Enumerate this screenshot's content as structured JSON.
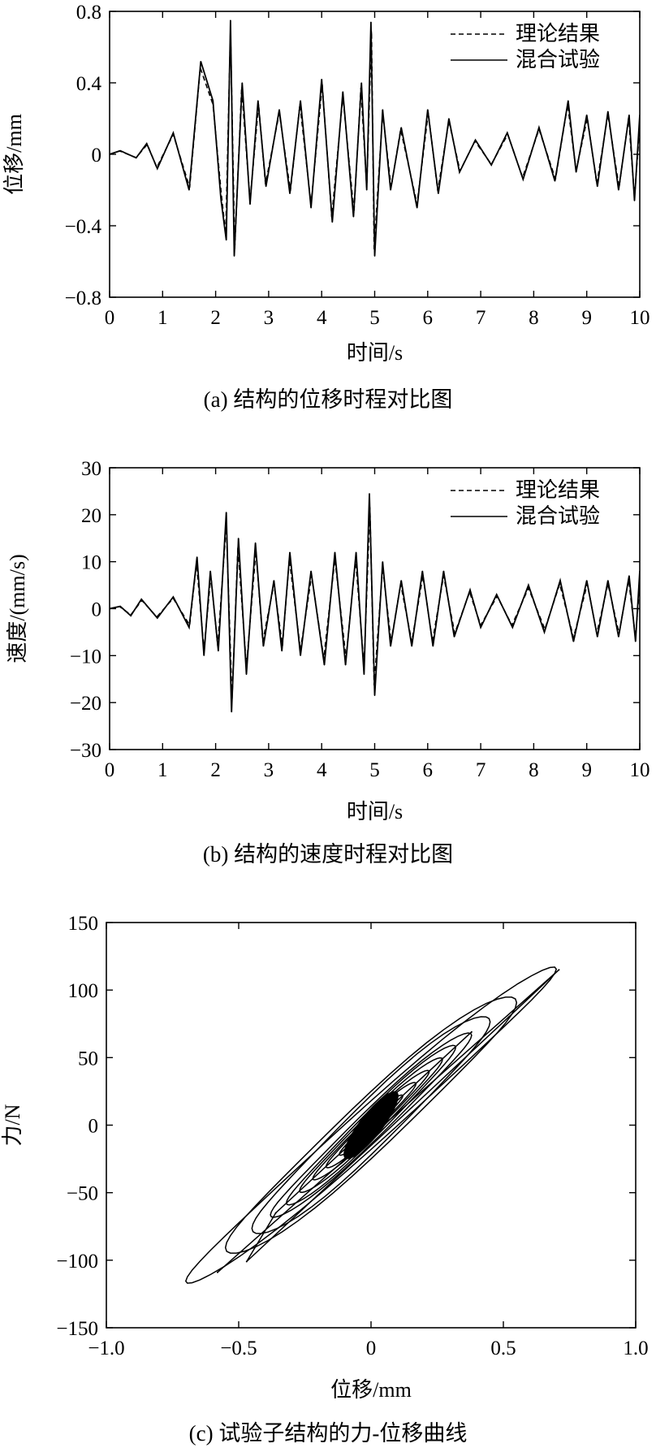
{
  "chart_data": [
    {
      "id": "a",
      "type": "line",
      "caption": "(a) 结构的位移时程对比图",
      "xlabel": "时间/s",
      "ylabel": "位移/mm",
      "xlim": [
        0,
        10
      ],
      "ylim": [
        -0.8,
        0.8
      ],
      "xticks": [
        "0",
        "1",
        "2",
        "3",
        "4",
        "5",
        "6",
        "7",
        "8",
        "9",
        "10"
      ],
      "yticks": [
        "0.8",
        "0.4",
        "0",
        "−0.4",
        "−0.8"
      ],
      "legend": {
        "position": "top-right",
        "entries": [
          "理论结果",
          "混合试验"
        ]
      },
      "series": [
        {
          "name": "理论结果",
          "style": "dashed",
          "scale": 0.93
        },
        {
          "name": "混合试验",
          "style": "solid",
          "scale": 1.0
        }
      ],
      "peaks": [
        {
          "x": 0.2,
          "y": 0.02
        },
        {
          "x": 0.5,
          "y": -0.02
        },
        {
          "x": 0.7,
          "y": 0.06
        },
        {
          "x": 0.9,
          "y": -0.08
        },
        {
          "x": 1.2,
          "y": 0.12
        },
        {
          "x": 1.5,
          "y": -0.2
        },
        {
          "x": 1.72,
          "y": 0.52
        },
        {
          "x": 1.95,
          "y": 0.3
        },
        {
          "x": 2.1,
          "y": -0.25
        },
        {
          "x": 2.2,
          "y": -0.48
        },
        {
          "x": 2.28,
          "y": 0.75
        },
        {
          "x": 2.35,
          "y": -0.57
        },
        {
          "x": 2.5,
          "y": 0.4
        },
        {
          "x": 2.65,
          "y": -0.28
        },
        {
          "x": 2.8,
          "y": 0.3
        },
        {
          "x": 2.95,
          "y": -0.18
        },
        {
          "x": 3.2,
          "y": 0.25
        },
        {
          "x": 3.4,
          "y": -0.22
        },
        {
          "x": 3.6,
          "y": 0.3
        },
        {
          "x": 3.8,
          "y": -0.3
        },
        {
          "x": 4.0,
          "y": 0.42
        },
        {
          "x": 4.2,
          "y": -0.38
        },
        {
          "x": 4.4,
          "y": 0.35
        },
        {
          "x": 4.6,
          "y": -0.35
        },
        {
          "x": 4.75,
          "y": 0.4
        },
        {
          "x": 4.85,
          "y": -0.2
        },
        {
          "x": 4.93,
          "y": 0.74
        },
        {
          "x": 5.0,
          "y": -0.57
        },
        {
          "x": 5.15,
          "y": 0.25
        },
        {
          "x": 5.3,
          "y": -0.2
        },
        {
          "x": 5.5,
          "y": 0.15
        },
        {
          "x": 5.8,
          "y": -0.3
        },
        {
          "x": 6.0,
          "y": 0.25
        },
        {
          "x": 6.2,
          "y": -0.22
        },
        {
          "x": 6.4,
          "y": 0.2
        },
        {
          "x": 6.6,
          "y": -0.1
        },
        {
          "x": 6.9,
          "y": 0.08
        },
        {
          "x": 7.2,
          "y": -0.06
        },
        {
          "x": 7.5,
          "y": 0.12
        },
        {
          "x": 7.8,
          "y": -0.14
        },
        {
          "x": 8.1,
          "y": 0.15
        },
        {
          "x": 8.4,
          "y": -0.15
        },
        {
          "x": 8.65,
          "y": 0.3
        },
        {
          "x": 8.8,
          "y": -0.1
        },
        {
          "x": 9.0,
          "y": 0.22
        },
        {
          "x": 9.2,
          "y": -0.18
        },
        {
          "x": 9.4,
          "y": 0.24
        },
        {
          "x": 9.6,
          "y": -0.2
        },
        {
          "x": 9.8,
          "y": 0.22
        },
        {
          "x": 9.9,
          "y": -0.26
        },
        {
          "x": 10.0,
          "y": 0.22
        }
      ]
    },
    {
      "id": "b",
      "type": "line",
      "caption": "(b) 结构的速度时程对比图",
      "xlabel": "时间/s",
      "ylabel": "速度/(mm/s)",
      "xlim": [
        0,
        10
      ],
      "ylim": [
        -30,
        30
      ],
      "xticks": [
        "0",
        "1",
        "2",
        "3",
        "4",
        "5",
        "6",
        "7",
        "8",
        "9",
        "10"
      ],
      "yticks": [
        "30",
        "20",
        "10",
        "0",
        "−10",
        "−20",
        "−30"
      ],
      "legend": {
        "position": "top-right",
        "entries": [
          "理论结果",
          "混合试验"
        ]
      },
      "series": [
        {
          "name": "理论结果",
          "style": "dashed",
          "scale": 0.88
        },
        {
          "name": "混合试验",
          "style": "solid",
          "scale": 1.0
        }
      ],
      "peaks": [
        {
          "x": 0.2,
          "y": 0.5
        },
        {
          "x": 0.4,
          "y": -1.5
        },
        {
          "x": 0.6,
          "y": 2
        },
        {
          "x": 0.9,
          "y": -2
        },
        {
          "x": 1.2,
          "y": 2.5
        },
        {
          "x": 1.5,
          "y": -4
        },
        {
          "x": 1.65,
          "y": 11
        },
        {
          "x": 1.78,
          "y": -10
        },
        {
          "x": 1.9,
          "y": 8
        },
        {
          "x": 2.05,
          "y": -9
        },
        {
          "x": 2.2,
          "y": 20.5
        },
        {
          "x": 2.3,
          "y": -22
        },
        {
          "x": 2.43,
          "y": 15
        },
        {
          "x": 2.58,
          "y": -14
        },
        {
          "x": 2.75,
          "y": 14
        },
        {
          "x": 2.9,
          "y": -8
        },
        {
          "x": 3.1,
          "y": 6
        },
        {
          "x": 3.25,
          "y": -9
        },
        {
          "x": 3.4,
          "y": 12
        },
        {
          "x": 3.6,
          "y": -10
        },
        {
          "x": 3.8,
          "y": 8
        },
        {
          "x": 4.05,
          "y": -12
        },
        {
          "x": 4.25,
          "y": 12
        },
        {
          "x": 4.45,
          "y": -12
        },
        {
          "x": 4.65,
          "y": 12
        },
        {
          "x": 4.8,
          "y": -14
        },
        {
          "x": 4.9,
          "y": 24.5
        },
        {
          "x": 5.0,
          "y": -18.5
        },
        {
          "x": 5.15,
          "y": 10
        },
        {
          "x": 5.3,
          "y": -8
        },
        {
          "x": 5.5,
          "y": 6
        },
        {
          "x": 5.7,
          "y": -8
        },
        {
          "x": 5.9,
          "y": 8
        },
        {
          "x": 6.1,
          "y": -8
        },
        {
          "x": 6.3,
          "y": 8
        },
        {
          "x": 6.5,
          "y": -6
        },
        {
          "x": 6.8,
          "y": 4
        },
        {
          "x": 7.0,
          "y": -4
        },
        {
          "x": 7.3,
          "y": 3
        },
        {
          "x": 7.6,
          "y": -4
        },
        {
          "x": 7.9,
          "y": 5
        },
        {
          "x": 8.2,
          "y": -5
        },
        {
          "x": 8.5,
          "y": 6
        },
        {
          "x": 8.75,
          "y": -7
        },
        {
          "x": 9.0,
          "y": 6
        },
        {
          "x": 9.2,
          "y": -6
        },
        {
          "x": 9.4,
          "y": 6
        },
        {
          "x": 9.6,
          "y": -6
        },
        {
          "x": 9.8,
          "y": 7
        },
        {
          "x": 9.92,
          "y": -7
        },
        {
          "x": 10.0,
          "y": 8
        }
      ]
    },
    {
      "id": "c",
      "type": "line",
      "caption": "(c) 试验子结构的力-位移曲线",
      "xlabel": "位移/mm",
      "ylabel": "力/N",
      "xlim": [
        -1.0,
        1.0
      ],
      "ylim": [
        -150,
        150
      ],
      "xticks": [
        "−1.0",
        "−0.5",
        "0",
        "0.5",
        "1.0"
      ],
      "yticks": [
        "150",
        "100",
        "50",
        "0",
        "−50",
        "−100",
        "−150"
      ],
      "series": [
        {
          "name": "",
          "style": "solid",
          "loops": [
            {
              "amp": 0.7,
              "slope": 165,
              "width": 18
            },
            {
              "amp": 0.55,
              "slope": 165,
              "width": 25
            },
            {
              "amp": 0.45,
              "slope": 170,
              "width": 22
            },
            {
              "amp": 0.38,
              "slope": 175,
              "width": 14
            },
            {
              "amp": 0.32,
              "slope": 180,
              "width": 12
            },
            {
              "amp": 0.27,
              "slope": 180,
              "width": 10
            },
            {
              "amp": 0.22,
              "slope": 180,
              "width": 8
            },
            {
              "amp": 0.17,
              "slope": 180,
              "width": 7
            },
            {
              "amp": 0.12,
              "slope": 180,
              "width": 5
            }
          ],
          "key_points": [
            {
              "x": -0.58,
              "y": -109
            },
            {
              "x": 0.71,
              "y": 115
            },
            {
              "x": -0.47,
              "y": -101
            },
            {
              "x": 0.52,
              "y": 80
            },
            {
              "x": 0.38,
              "y": 69
            },
            {
              "x": -0.36,
              "y": -65
            }
          ]
        }
      ]
    }
  ]
}
